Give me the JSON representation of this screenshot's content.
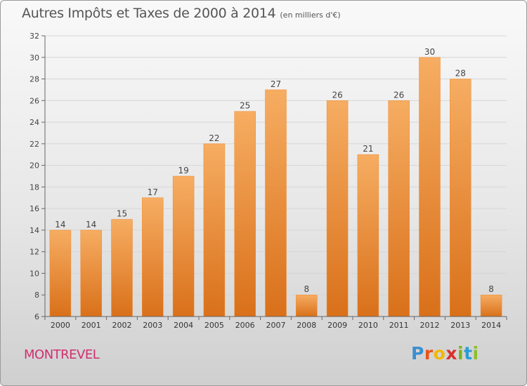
{
  "title": "Autres Impôts et Taxes de 2000 à 2014",
  "subtitle": "(en milliers d'€)",
  "town": "MONTREVEL",
  "brand": {
    "letters": [
      "P",
      "r",
      "o",
      "x",
      "i",
      "t",
      "i"
    ],
    "colors": [
      "#3a8fd1",
      "#e8541a",
      "#f3b700",
      "#d8302b",
      "#7ab51d",
      "#2a9bd6",
      "#8dbf2a"
    ]
  },
  "colors": {
    "bar": "#f08a2c",
    "bar_light": "#f6ad62",
    "bar_dark": "#d9701a"
  },
  "chart_data": {
    "type": "bar",
    "categories": [
      "2000",
      "2001",
      "2002",
      "2003",
      "2004",
      "2005",
      "2006",
      "2007",
      "2008",
      "2009",
      "2010",
      "2011",
      "2012",
      "2013",
      "2014"
    ],
    "values": [
      14,
      14,
      15,
      17,
      19,
      22,
      25,
      27,
      8,
      26,
      21,
      26,
      30,
      28,
      8
    ],
    "data_labels": [
      "14",
      "14",
      "15",
      "17",
      "19",
      "22",
      "25",
      "27",
      "8",
      "26",
      "21",
      "26",
      "30",
      "28",
      "8"
    ],
    "title": "Autres Impôts et Taxes de 2000 à 2014",
    "xlabel": "",
    "ylabel": "",
    "ylim": [
      6,
      32
    ],
    "yticks": [
      6,
      8,
      10,
      12,
      14,
      16,
      18,
      20,
      22,
      24,
      26,
      28,
      30,
      32
    ],
    "ytick_labels": [
      "6",
      "8",
      "10",
      "12",
      "14",
      "16",
      "18",
      "20",
      "22",
      "24",
      "26",
      "28",
      "30",
      "32"
    ],
    "grid": true
  }
}
